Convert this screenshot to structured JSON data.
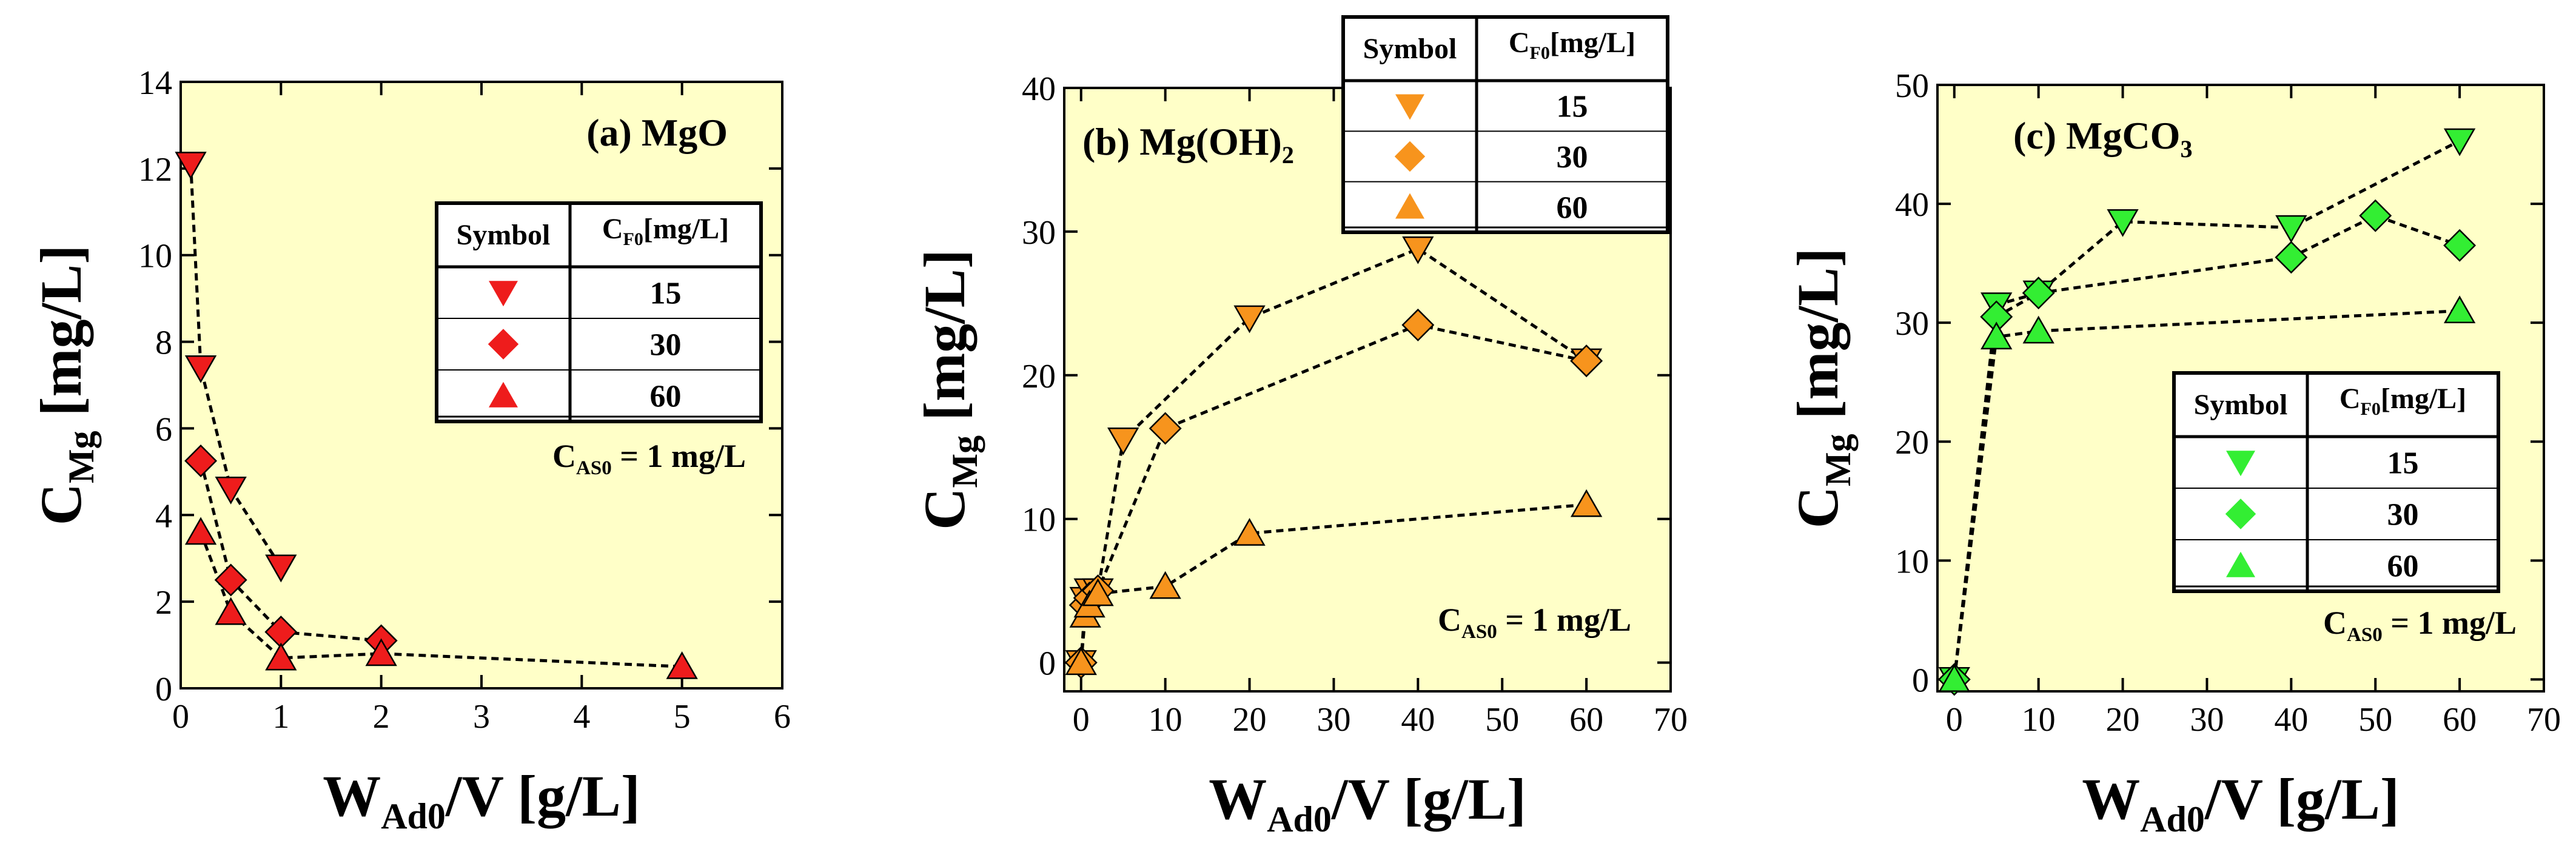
{
  "chart_data": [
    {
      "type": "scatter",
      "panel_label": {
        "prefix": "(a) MgO",
        "sub": ""
      },
      "ylabel": "C",
      "ylabel_sub": "Mg",
      "ylabel_units": "[mg/L]",
      "xlabel": "W",
      "xlabel_sub": "Ad0",
      "xlabel_rest": "/V  [g/L]",
      "xlim": [
        0,
        6
      ],
      "ylim": [
        0,
        14
      ],
      "xticks": [
        0,
        1,
        2,
        3,
        4,
        5,
        6
      ],
      "yticks": [
        0,
        2,
        4,
        6,
        8,
        10,
        12,
        14
      ],
      "note": {
        "prefix": "C",
        "sub": "AS0",
        "rest": " = 1 mg/L"
      },
      "marker_color": "#ee1c1c",
      "table": {
        "header_symbol": "Symbol",
        "header_c": "C",
        "header_c_sub": "F0",
        "header_c_units": "[mg/L]",
        "rows": [
          {
            "marker": "triangle-down",
            "value": "15"
          },
          {
            "marker": "diamond",
            "value": "30"
          },
          {
            "marker": "triangle-up",
            "value": "60"
          }
        ]
      },
      "series": [
        {
          "name": "15",
          "marker": "triangle-down",
          "x": [
            0.1,
            0.2,
            0.5,
            1.0
          ],
          "y": [
            12.1,
            7.4,
            4.6,
            2.8
          ]
        },
        {
          "name": "30",
          "marker": "diamond",
          "x": [
            0.2,
            0.5,
            1.0,
            2.0
          ],
          "y": [
            5.25,
            2.5,
            1.3,
            1.1
          ]
        },
        {
          "name": "60",
          "marker": "triangle-up",
          "x": [
            0.2,
            0.5,
            1.0,
            2.0,
            5.0
          ],
          "y": [
            3.6,
            1.75,
            0.7,
            0.8,
            0.5
          ]
        }
      ]
    },
    {
      "type": "scatter",
      "panel_label": {
        "prefix": "(b) Mg(OH)",
        "sub": "2"
      },
      "ylabel": "C",
      "ylabel_sub": "Mg",
      "ylabel_units": "[mg/L]",
      "xlabel": "W",
      "xlabel_sub": "Ad0",
      "xlabel_rest": "/V  [g/L]",
      "xlim": [
        -2,
        70
      ],
      "ylim": [
        -2,
        40
      ],
      "xticks": [
        0,
        10,
        20,
        30,
        40,
        50,
        60,
        70
      ],
      "yticks": [
        0,
        10,
        20,
        30,
        40
      ],
      "note": {
        "prefix": "C",
        "sub": "AS0",
        "rest": " = 1 mg/L"
      },
      "marker_color": "#f7941d",
      "table": {
        "header_symbol": "Symbol",
        "header_c": "C",
        "header_c_sub": "F0",
        "header_c_units": "[mg/L]",
        "rows": [
          {
            "marker": "triangle-down",
            "value": "15"
          },
          {
            "marker": "diamond",
            "value": "30"
          },
          {
            "marker": "triangle-up",
            "value": "60"
          }
        ]
      },
      "series": [
        {
          "name": "15",
          "marker": "triangle-down",
          "x": [
            0,
            0.5,
            1,
            2,
            5,
            20,
            40,
            60
          ],
          "y": [
            0,
            4.4,
            5,
            5,
            15.5,
            24,
            28.8,
            21
          ]
        },
        {
          "name": "30",
          "marker": "diamond",
          "x": [
            0,
            0.5,
            1,
            2,
            10,
            40,
            60
          ],
          "y": [
            0,
            4,
            4.5,
            5,
            16.3,
            23.5,
            21
          ]
        },
        {
          "name": "60",
          "marker": "triangle-up",
          "x": [
            0,
            0.5,
            1,
            2,
            10,
            20,
            60
          ],
          "y": [
            0,
            3.3,
            4,
            4.8,
            5.3,
            9,
            11
          ]
        }
      ]
    },
    {
      "type": "scatter",
      "panel_label": {
        "prefix": "(c) MgCO",
        "sub": "3"
      },
      "ylabel": "C",
      "ylabel_sub": "Mg",
      "ylabel_units": "[mg/L]",
      "xlabel": "W",
      "xlabel_sub": "Ad0",
      "xlabel_rest": "/V  [g/L]",
      "xlim": [
        -2,
        70
      ],
      "ylim": [
        -1,
        50
      ],
      "xticks": [
        0,
        10,
        20,
        30,
        40,
        50,
        60,
        70
      ],
      "yticks": [
        0,
        10,
        20,
        30,
        40,
        50
      ],
      "note": {
        "prefix": "C",
        "sub": "AS0",
        "rest": " = 1 mg/L"
      },
      "marker_color": "#33ee33",
      "table": {
        "header_symbol": "Symbol",
        "header_c": "C",
        "header_c_sub": "F0",
        "header_c_units": "[mg/L]",
        "rows": [
          {
            "marker": "triangle-down",
            "value": "15"
          },
          {
            "marker": "diamond",
            "value": "30"
          },
          {
            "marker": "triangle-up",
            "value": "60"
          }
        ]
      },
      "series": [
        {
          "name": "15",
          "marker": "triangle-down",
          "x": [
            0,
            5,
            10,
            20,
            40,
            60
          ],
          "y": [
            0,
            31.5,
            32.5,
            38.5,
            38,
            45.3
          ]
        },
        {
          "name": "30",
          "marker": "diamond",
          "x": [
            0,
            5,
            10,
            40,
            50,
            60
          ],
          "y": [
            0,
            30.5,
            32.5,
            35.5,
            39,
            36.5
          ]
        },
        {
          "name": "60",
          "marker": "triangle-up",
          "x": [
            0,
            5,
            10,
            60
          ],
          "y": [
            0,
            28.8,
            29.3,
            31
          ]
        }
      ]
    }
  ]
}
